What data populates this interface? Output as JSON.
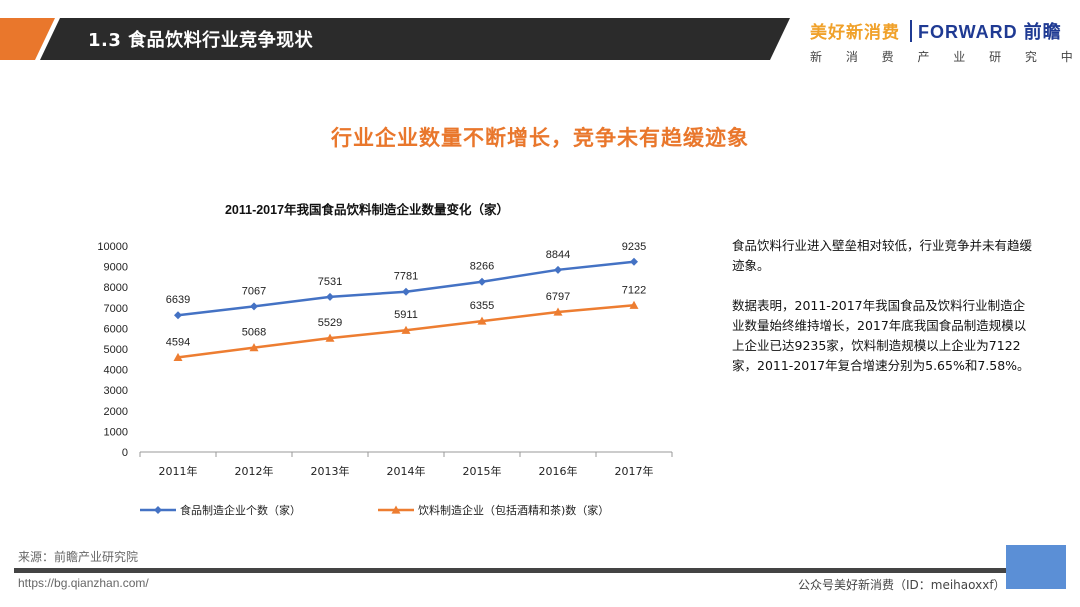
{
  "header": {
    "title": "1.3 食品饮料行业竞争现状"
  },
  "brand": {
    "cn_name": "美好新消费",
    "en_name": "FORWARD 前瞻",
    "subtitle": "新 消 费 产 业 研 究 中 心"
  },
  "headline": "行业企业数量不断增长，竞争未有趋缓迹象",
  "colors": {
    "accent": "#e9772c",
    "series1": "#4472c4",
    "series2": "#ed7d31",
    "header_bg": "#2b2b2b"
  },
  "chart_data": {
    "type": "line",
    "title": "2011-2017年我国食品饮料制造企业数量变化（家）",
    "categories": [
      "2011年",
      "2012年",
      "2013年",
      "2014年",
      "2015年",
      "2016年",
      "2017年"
    ],
    "series": [
      {
        "name": "食品制造企业个数（家）",
        "values": [
          6639,
          7067,
          7531,
          7781,
          8266,
          8844,
          9235
        ],
        "color": "#4472c4",
        "marker": "diamond"
      },
      {
        "name": "饮料制造企业（包括酒精和茶)数（家）",
        "values": [
          4594,
          5068,
          5529,
          5911,
          6355,
          6797,
          7122
        ],
        "color": "#ed7d31",
        "marker": "triangle"
      }
    ],
    "ylim": [
      0,
      10000
    ],
    "yticks": [
      0,
      1000,
      2000,
      3000,
      4000,
      5000,
      6000,
      7000,
      8000,
      9000,
      10000
    ],
    "legend": "bottom",
    "grid": false
  },
  "side_text": {
    "para1": "食品饮料行业进入壁垒相对较低，行业竞争并未有趋缓迹象。",
    "para2": "数据表明，2011-2017年我国食品及饮料行业制造企业数量始终维持增长，2017年底我国食品制造规模以上企业已达9235家，饮料制造规模以上企业为7122家，2011-2017年复合增速分别为5.65%和7.58%。"
  },
  "footer": {
    "source": "来源：前瞻产业研究院",
    "url": "https://bg.qianzhan.com/",
    "wechat": "公众号美好新消费（ID：meihaoxxf）"
  }
}
